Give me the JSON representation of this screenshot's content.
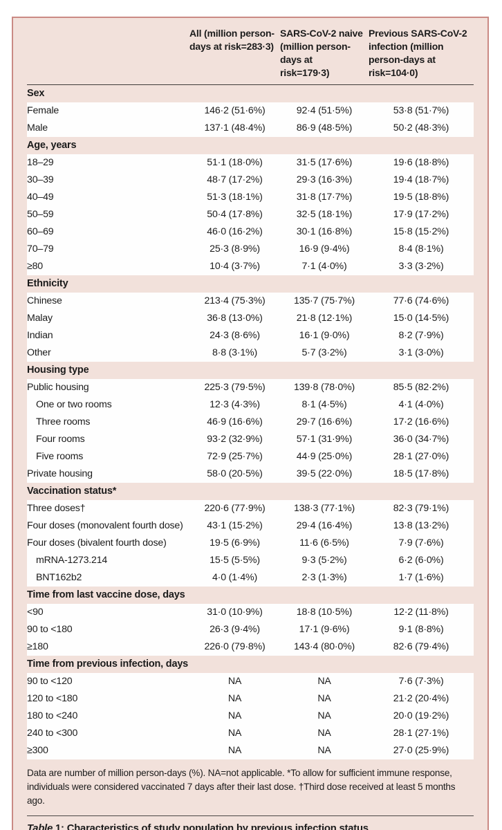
{
  "colors": {
    "card_background": "#f2e1db",
    "card_border": "#ca8a84",
    "row_stripe": "#fefefe",
    "text": "#1b1b1b",
    "rule": "#3e3a38"
  },
  "table": {
    "columns": [
      "",
      "All (million person-days at risk=283·3)",
      "SARS-CoV-2 naive (million person-days at risk=179·3)",
      "Previous SARS-CoV-2 infection (million person-days at risk=104·0)"
    ],
    "sections": [
      {
        "header": "Sex",
        "rows": [
          {
            "label": "Female",
            "indent": false,
            "values": [
              "146·2 (51·6%)",
              "92·4 (51·5%)",
              "53·8 (51·7%)"
            ]
          },
          {
            "label": "Male",
            "indent": false,
            "values": [
              "137·1 (48·4%)",
              "86·9 (48·5%)",
              "50·2 (48·3%)"
            ]
          }
        ]
      },
      {
        "header": "Age, years",
        "rows": [
          {
            "label": "18–29",
            "indent": false,
            "values": [
              "51·1 (18·0%)",
              "31·5 (17·6%)",
              "19·6 (18·8%)"
            ]
          },
          {
            "label": "30–39",
            "indent": false,
            "values": [
              "48·7 (17·2%)",
              "29·3 (16·3%)",
              "19·4 (18·7%)"
            ]
          },
          {
            "label": "40–49",
            "indent": false,
            "values": [
              "51·3 (18·1%)",
              "31·8 (17·7%)",
              "19·5 (18·8%)"
            ]
          },
          {
            "label": "50–59",
            "indent": false,
            "values": [
              "50·4 (17·8%)",
              "32·5 (18·1%)",
              "17·9 (17·2%)"
            ]
          },
          {
            "label": "60–69",
            "indent": false,
            "values": [
              "46·0 (16·2%)",
              "30·1 (16·8%)",
              "15·8 (15·2%)"
            ]
          },
          {
            "label": "70–79",
            "indent": false,
            "values": [
              "25·3 (8·9%)",
              "16·9 (9·4%)",
              "8·4 (8·1%)"
            ]
          },
          {
            "label": "≥80",
            "indent": false,
            "values": [
              "10·4 (3·7%)",
              "7·1 (4·0%)",
              "3·3 (3·2%)"
            ]
          }
        ]
      },
      {
        "header": "Ethnicity",
        "rows": [
          {
            "label": "Chinese",
            "indent": false,
            "values": [
              "213·4 (75·3%)",
              "135·7 (75·7%)",
              "77·6 (74·6%)"
            ]
          },
          {
            "label": "Malay",
            "indent": false,
            "values": [
              "36·8 (13·0%)",
              "21·8 (12·1%)",
              "15·0 (14·5%)"
            ]
          },
          {
            "label": "Indian",
            "indent": false,
            "values": [
              "24·3 (8·6%)",
              "16·1 (9·0%)",
              "8·2 (7·9%)"
            ]
          },
          {
            "label": "Other",
            "indent": false,
            "values": [
              "8·8 (3·1%)",
              "5·7 (3·2%)",
              "3·1 (3·0%)"
            ]
          }
        ]
      },
      {
        "header": "Housing type",
        "rows": [
          {
            "label": "Public housing",
            "indent": false,
            "values": [
              "225·3 (79·5%)",
              "139·8 (78·0%)",
              "85·5 (82·2%)"
            ]
          },
          {
            "label": "One or two rooms",
            "indent": true,
            "values": [
              "12·3 (4·3%)",
              "8·1 (4·5%)",
              "4·1 (4·0%)"
            ]
          },
          {
            "label": "Three rooms",
            "indent": true,
            "values": [
              "46·9 (16·6%)",
              "29·7 (16·6%)",
              "17·2 (16·6%)"
            ]
          },
          {
            "label": "Four rooms",
            "indent": true,
            "values": [
              "93·2 (32·9%)",
              "57·1 (31·9%)",
              "36·0 (34·7%)"
            ]
          },
          {
            "label": "Five rooms",
            "indent": true,
            "values": [
              "72·9 (25·7%)",
              "44·9 (25·0%)",
              "28·1 (27·0%)"
            ]
          },
          {
            "label": "Private housing",
            "indent": false,
            "values": [
              "58·0 (20·5%)",
              "39·5 (22·0%)",
              "18·5 (17·8%)"
            ]
          }
        ]
      },
      {
        "header": "Vaccination status*",
        "rows": [
          {
            "label": "Three doses†",
            "indent": false,
            "values": [
              "220·6 (77·9%)",
              "138·3 (77·1%)",
              "82·3 (79·1%)"
            ]
          },
          {
            "label": "Four doses (monovalent fourth dose)",
            "indent": false,
            "values": [
              "43·1 (15·2%)",
              "29·4 (16·4%)",
              "13·8 (13·2%)"
            ]
          },
          {
            "label": "Four doses (bivalent fourth dose)",
            "indent": false,
            "values": [
              "19·5 (6·9%)",
              "11·6 (6·5%)",
              "7·9 (7·6%)"
            ]
          },
          {
            "label": "mRNA-1273.214",
            "indent": true,
            "values": [
              "15·5 (5·5%)",
              "9·3 (5·2%)",
              "6·2 (6·0%)"
            ]
          },
          {
            "label": "BNT162b2",
            "indent": true,
            "values": [
              "4·0 (1·4%)",
              "2·3 (1·3%)",
              "1·7 (1·6%)"
            ]
          }
        ]
      },
      {
        "header": "Time from last vaccine dose, days",
        "rows": [
          {
            "label": "<90",
            "indent": false,
            "values": [
              "31·0 (10·9%)",
              "18·8 (10·5%)",
              "12·2 (11·8%)"
            ]
          },
          {
            "label": "90 to <180",
            "indent": false,
            "values": [
              "26·3 (9·4%)",
              "17·1 (9·6%)",
              "9·1 (8·8%)"
            ]
          },
          {
            "label": "≥180",
            "indent": false,
            "values": [
              "226·0 (79·8%)",
              "143·4 (80·0%)",
              "82·6 (79·4%)"
            ]
          }
        ]
      },
      {
        "header": "Time from previous infection, days",
        "rows": [
          {
            "label": "90 to <120",
            "indent": false,
            "values": [
              "NA",
              "NA",
              "7·6 (7·3%)"
            ]
          },
          {
            "label": "120 to <180",
            "indent": false,
            "values": [
              "NA",
              "NA",
              "21·2 (20·4%)"
            ]
          },
          {
            "label": "180 to <240",
            "indent": false,
            "values": [
              "NA",
              "NA",
              "20·0 (19·2%)"
            ]
          },
          {
            "label": "240 to <300",
            "indent": false,
            "values": [
              "NA",
              "NA",
              "28·1 (27·1%)"
            ]
          },
          {
            "label": "≥300",
            "indent": false,
            "values": [
              "NA",
              "NA",
              "27·0 (25·9%)"
            ]
          }
        ]
      }
    ],
    "footnote": "Data are number of million person-days (%). NA=not applicable. *To allow for sufficient immune response, individuals were considered vaccinated 7 days after their last dose. †Third dose received at least 5 months ago.",
    "caption": {
      "word": "Table",
      "number": "1:",
      "text": "Characteristics of study population by previous infection status"
    }
  }
}
